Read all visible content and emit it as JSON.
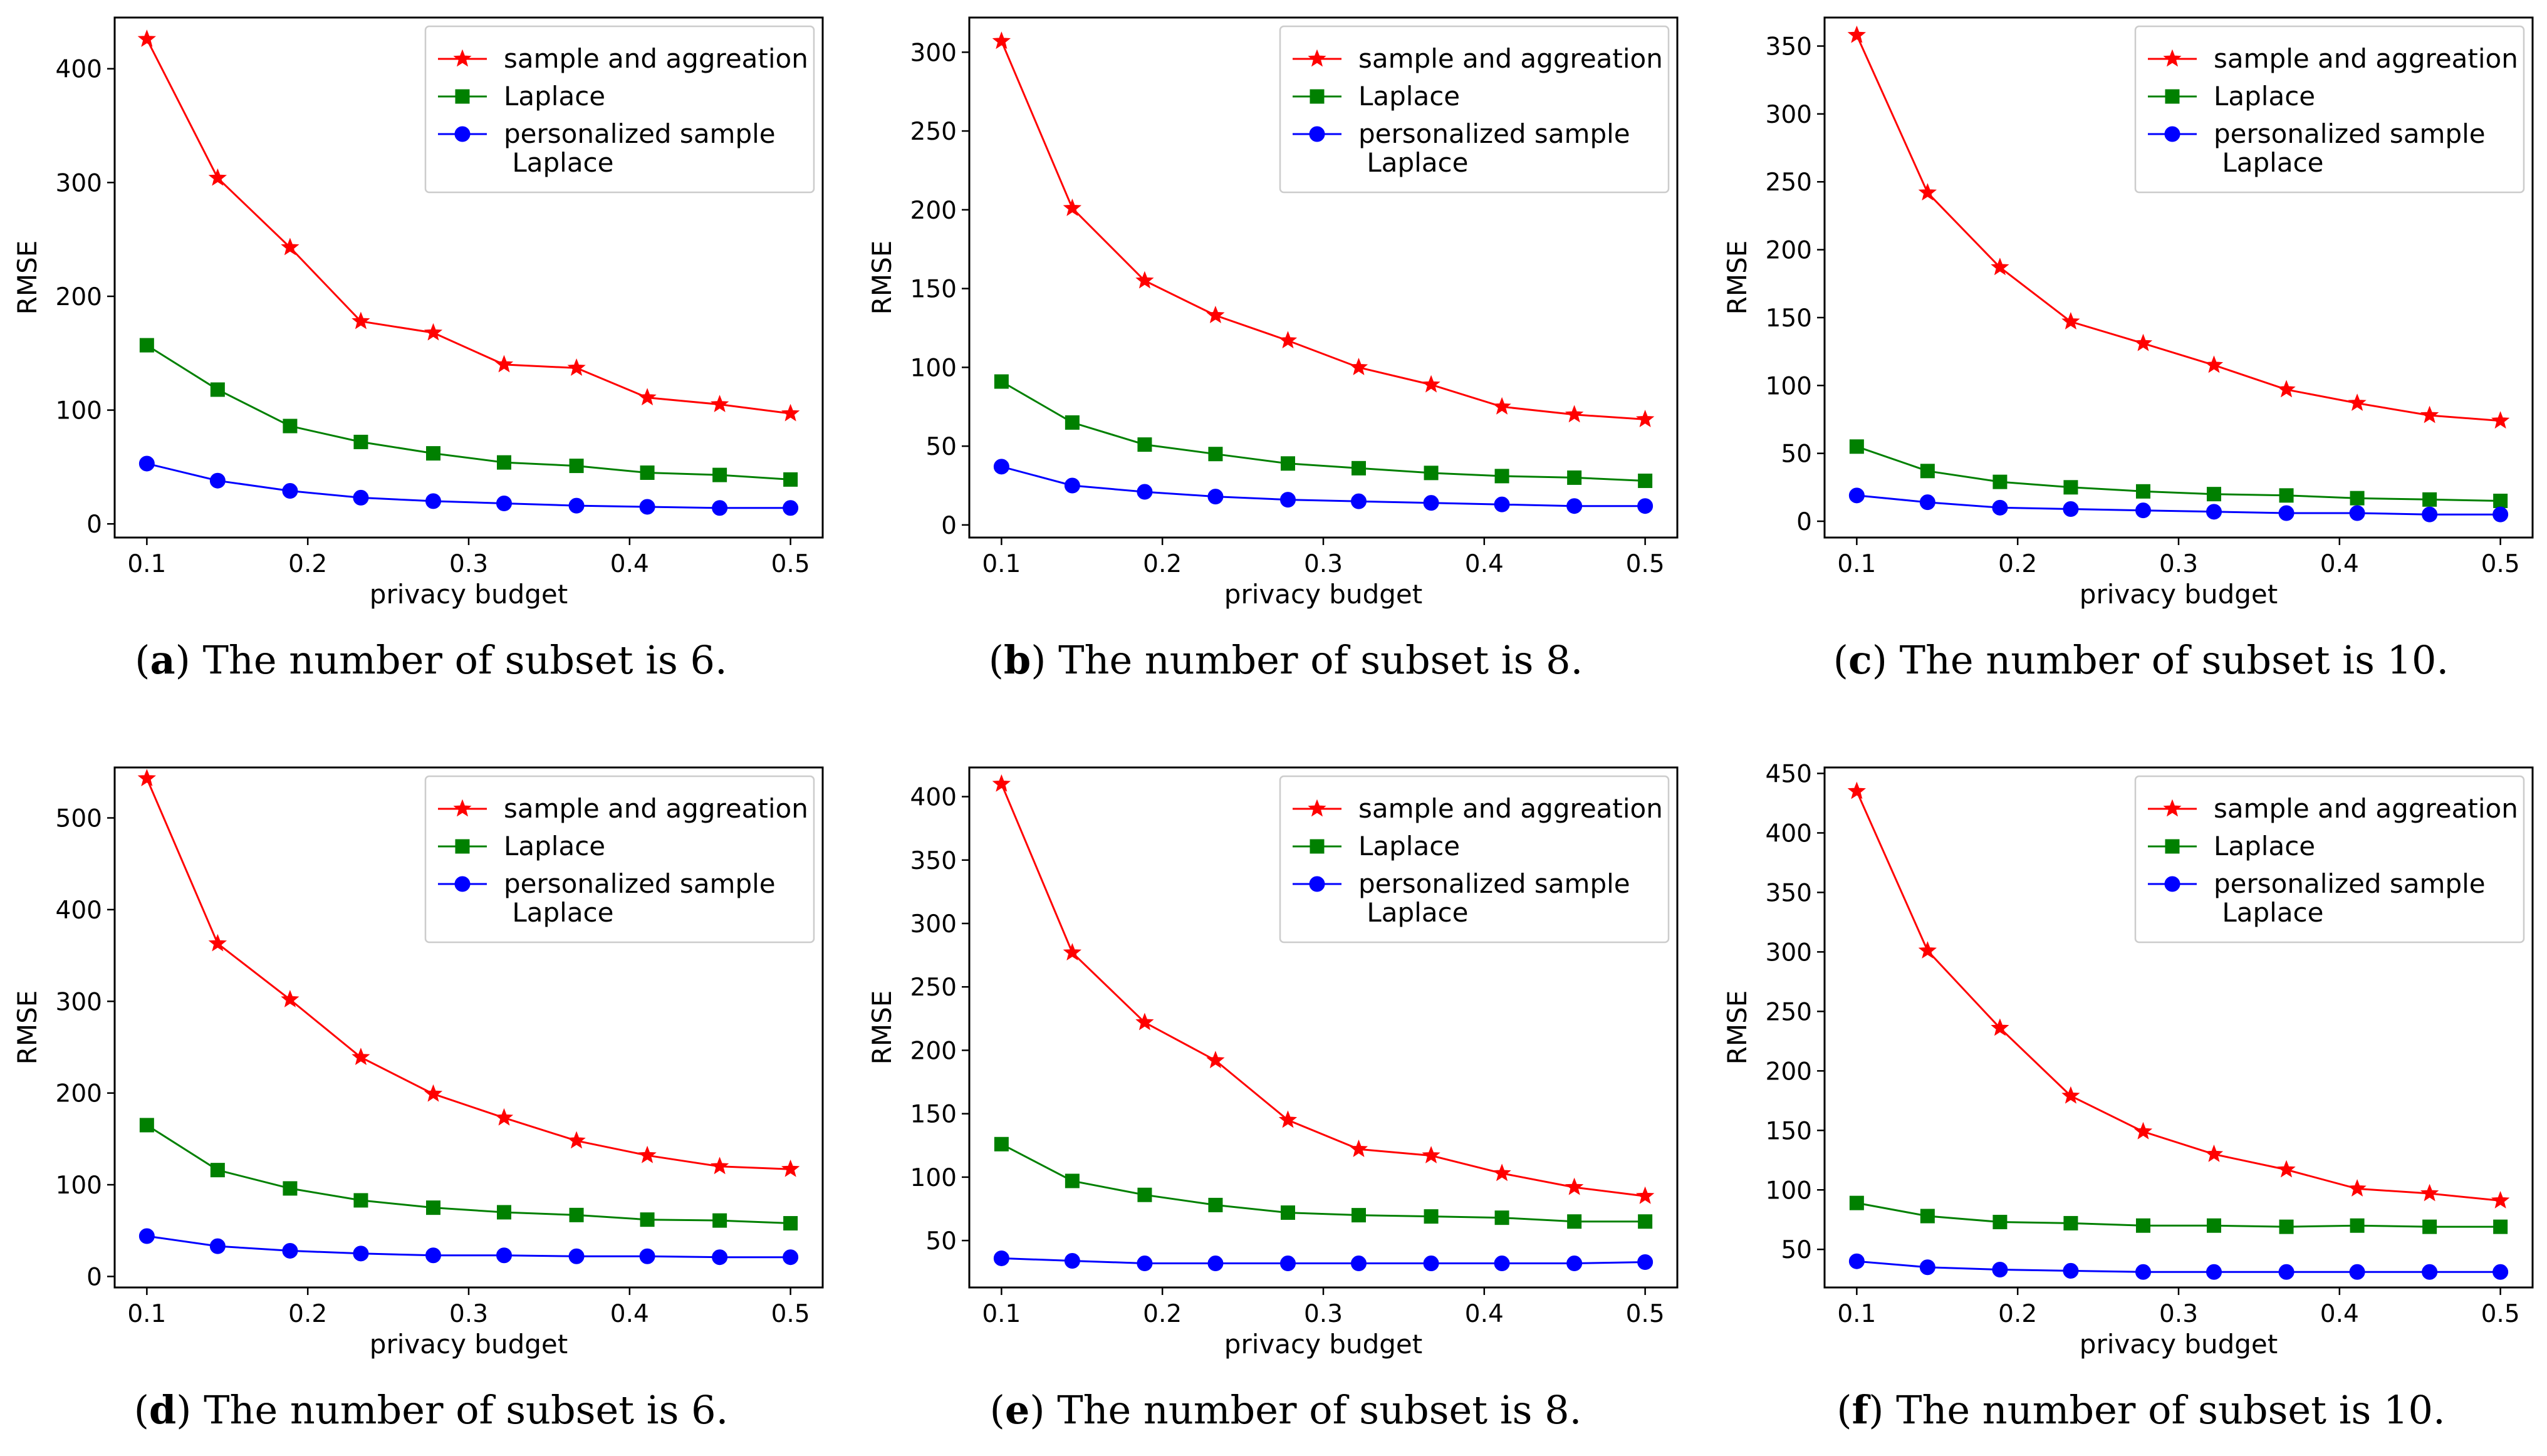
{
  "chart_data": [
    {
      "type": "line",
      "caption": {
        "letter": "a",
        "text": "The number of subset is 6."
      },
      "xlabel": "privacy budget",
      "ylabel": "RMSE",
      "xlim": [
        0.08,
        0.52
      ],
      "ylim": [
        -12,
        445
      ],
      "xticks": [
        0.1,
        0.2,
        0.3,
        0.4,
        0.5
      ],
      "yticks": [
        0,
        100,
        200,
        300,
        400
      ],
      "x": [
        0.1,
        0.144,
        0.189,
        0.233,
        0.278,
        0.322,
        0.367,
        0.411,
        0.456,
        0.5
      ],
      "series": [
        {
          "name": "sample and aggreation",
          "color": "#ff0000",
          "marker": "star",
          "values": [
            426,
            304,
            243,
            178,
            168,
            140,
            137,
            111,
            105,
            97
          ]
        },
        {
          "name": "Laplace",
          "color": "#008000",
          "marker": "square",
          "values": [
            157,
            118,
            86,
            72,
            62,
            54,
            51,
            45,
            43,
            39
          ]
        },
        {
          "name": "personalized sample\n Laplace",
          "color": "#0000ff",
          "marker": "circle",
          "values": [
            53,
            38,
            29,
            23,
            20,
            18,
            16,
            15,
            14,
            14
          ]
        }
      ],
      "legend": "top-right"
    },
    {
      "type": "line",
      "caption": {
        "letter": "b",
        "text": "The number of subset is 8."
      },
      "xlabel": "privacy budget",
      "ylabel": "RMSE",
      "xlim": [
        0.08,
        0.52
      ],
      "ylim": [
        -8,
        322
      ],
      "xticks": [
        0.1,
        0.2,
        0.3,
        0.4,
        0.5
      ],
      "yticks": [
        0,
        50,
        100,
        150,
        200,
        250,
        300
      ],
      "x": [
        0.1,
        0.144,
        0.189,
        0.233,
        0.278,
        0.322,
        0.367,
        0.411,
        0.456,
        0.5
      ],
      "series": [
        {
          "name": "sample and aggreation",
          "color": "#ff0000",
          "marker": "star",
          "values": [
            307,
            201,
            155,
            133,
            117,
            100,
            89,
            75,
            70,
            67
          ]
        },
        {
          "name": "Laplace",
          "color": "#008000",
          "marker": "square",
          "values": [
            91,
            65,
            51,
            45,
            39,
            36,
            33,
            31,
            30,
            28
          ]
        },
        {
          "name": "personalized sample\n Laplace",
          "color": "#0000ff",
          "marker": "circle",
          "values": [
            37,
            25,
            21,
            18,
            16,
            15,
            14,
            13,
            12,
            12
          ]
        }
      ],
      "legend": "top-right"
    },
    {
      "type": "line",
      "caption": {
        "letter": "c",
        "text": "The number of subset is 10."
      },
      "xlabel": "privacy budget",
      "ylabel": "RMSE",
      "xlim": [
        0.08,
        0.52
      ],
      "ylim": [
        -12,
        371
      ],
      "xticks": [
        0.1,
        0.2,
        0.3,
        0.4,
        0.5
      ],
      "yticks": [
        0,
        50,
        100,
        150,
        200,
        250,
        300,
        350
      ],
      "x": [
        0.1,
        0.144,
        0.189,
        0.233,
        0.278,
        0.322,
        0.367,
        0.411,
        0.456,
        0.5
      ],
      "series": [
        {
          "name": "sample and aggreation",
          "color": "#ff0000",
          "marker": "star",
          "values": [
            358,
            242,
            187,
            147,
            131,
            115,
            97,
            87,
            78,
            74
          ]
        },
        {
          "name": "Laplace",
          "color": "#008000",
          "marker": "square",
          "values": [
            55,
            37,
            29,
            25,
            22,
            20,
            19,
            17,
            16,
            15
          ]
        },
        {
          "name": "personalized sample\n Laplace",
          "color": "#0000ff",
          "marker": "circle",
          "values": [
            19,
            14,
            10,
            9,
            8,
            7,
            6,
            6,
            5,
            5
          ]
        }
      ],
      "legend": "top-right"
    },
    {
      "type": "line",
      "caption": {
        "letter": "d",
        "text": "The number of subset is 6."
      },
      "xlabel": "privacy budget",
      "ylabel": "RMSE",
      "xlim": [
        0.08,
        0.52
      ],
      "ylim": [
        -12,
        555
      ],
      "xticks": [
        0.1,
        0.2,
        0.3,
        0.4,
        0.5
      ],
      "yticks": [
        0,
        100,
        200,
        300,
        400,
        500
      ],
      "x": [
        0.1,
        0.144,
        0.189,
        0.233,
        0.278,
        0.322,
        0.367,
        0.411,
        0.456,
        0.5
      ],
      "series": [
        {
          "name": "sample and aggreation",
          "color": "#ff0000",
          "marker": "star",
          "values": [
            543,
            363,
            302,
            239,
            199,
            173,
            148,
            132,
            120,
            117
          ]
        },
        {
          "name": "Laplace",
          "color": "#008000",
          "marker": "square",
          "values": [
            165,
            116,
            96,
            83,
            75,
            70,
            67,
            62,
            61,
            58
          ]
        },
        {
          "name": "personalized sample\n Laplace",
          "color": "#0000ff",
          "marker": "circle",
          "values": [
            44,
            33,
            28,
            25,
            23,
            23,
            22,
            22,
            21,
            21
          ]
        }
      ],
      "legend": "top-right"
    },
    {
      "type": "line",
      "caption": {
        "letter": "e",
        "text": "The number of subset is 8."
      },
      "xlabel": "privacy budget",
      "ylabel": "RMSE",
      "xlim": [
        0.08,
        0.52
      ],
      "ylim": [
        13,
        423
      ],
      "xticks": [
        0.1,
        0.2,
        0.3,
        0.4,
        0.5
      ],
      "yticks": [
        50,
        100,
        150,
        200,
        250,
        300,
        350,
        400
      ],
      "x": [
        0.1,
        0.144,
        0.189,
        0.233,
        0.278,
        0.322,
        0.367,
        0.411,
        0.456,
        0.5
      ],
      "series": [
        {
          "name": "sample and aggreation",
          "color": "#ff0000",
          "marker": "star",
          "values": [
            410,
            277,
            222,
            192,
            145,
            122,
            117,
            103,
            92,
            85
          ]
        },
        {
          "name": "Laplace",
          "color": "#008000",
          "marker": "square",
          "values": [
            126,
            97,
            86,
            78,
            72,
            70,
            69,
            68,
            65,
            65
          ]
        },
        {
          "name": "personalized sample\n Laplace",
          "color": "#0000ff",
          "marker": "circle",
          "values": [
            36,
            34,
            32,
            32,
            32,
            32,
            32,
            32,
            32,
            33
          ]
        }
      ],
      "legend": "top-right"
    },
    {
      "type": "line",
      "caption": {
        "letter": "f",
        "text": "The number of subset is 10."
      },
      "xlabel": "privacy budget",
      "ylabel": "RMSE",
      "xlim": [
        0.08,
        0.52
      ],
      "ylim": [
        18,
        455
      ],
      "xticks": [
        0.1,
        0.2,
        0.3,
        0.4,
        0.5
      ],
      "yticks": [
        50,
        100,
        150,
        200,
        250,
        300,
        350,
        400,
        450
      ],
      "x": [
        0.1,
        0.144,
        0.189,
        0.233,
        0.278,
        0.322,
        0.367,
        0.411,
        0.456,
        0.5
      ],
      "series": [
        {
          "name": "sample and aggreation",
          "color": "#ff0000",
          "marker": "star",
          "values": [
            435,
            301,
            236,
            179,
            149,
            130,
            117,
            101,
            97,
            91
          ]
        },
        {
          "name": "Laplace",
          "color": "#008000",
          "marker": "square",
          "values": [
            89,
            78,
            73,
            72,
            70,
            70,
            69,
            70,
            69,
            69
          ]
        },
        {
          "name": "personalized sample\n Laplace",
          "color": "#0000ff",
          "marker": "circle",
          "values": [
            40,
            35,
            33,
            32,
            31,
            31,
            31,
            31,
            31,
            31
          ]
        }
      ],
      "legend": "top-right"
    }
  ]
}
